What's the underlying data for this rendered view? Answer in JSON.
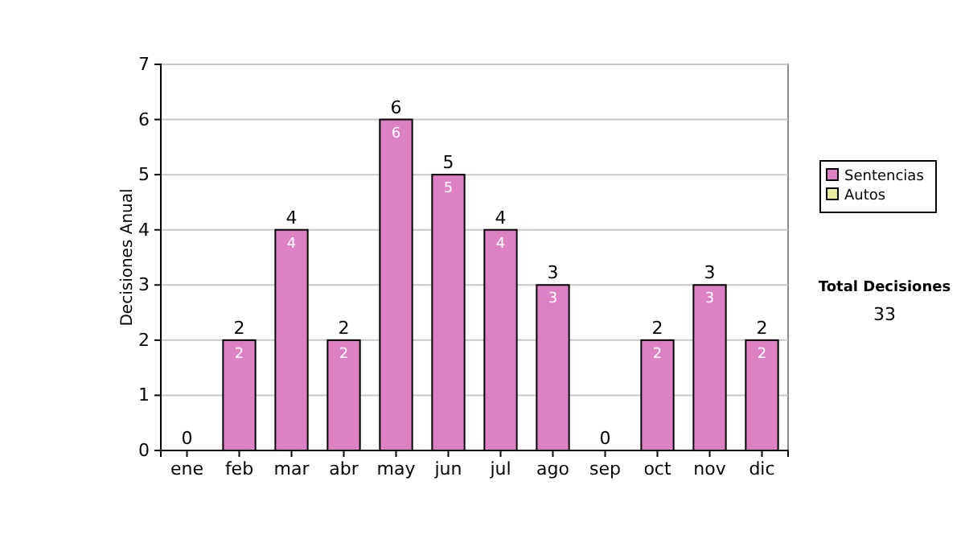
{
  "chart_data": {
    "type": "bar",
    "stacked": true,
    "ylabel": "Decisiones Anual",
    "categories": [
      "ene",
      "feb",
      "mar",
      "abr",
      "may",
      "jun",
      "jul",
      "ago",
      "sep",
      "oct",
      "nov",
      "dic"
    ],
    "series": [
      {
        "name": "Sentencias",
        "color": "#dd80c4",
        "values": [
          0,
          2,
          4,
          2,
          6,
          5,
          4,
          3,
          0,
          2,
          3,
          2
        ],
        "value_labels": [
          null,
          "2",
          "4",
          "2",
          "6",
          "5",
          "4",
          "3",
          null,
          "2",
          "3",
          "2"
        ]
      },
      {
        "name": "Autos",
        "color": "#e8eaa0",
        "values": [
          0,
          0,
          0,
          0,
          0,
          0,
          0,
          0,
          0,
          0,
          0,
          0
        ]
      }
    ],
    "totals": [
      "0",
      "2",
      "4",
      "2",
      "6",
      "5",
      "4",
      "3",
      "0",
      "2",
      "3",
      "2"
    ],
    "ylim": [
      0,
      7
    ],
    "yticks": [
      0,
      1,
      2,
      3,
      4,
      5,
      6,
      7
    ],
    "grid": "y",
    "legend": "right",
    "annotations": [
      "Total Decisiones",
      "33"
    ]
  }
}
